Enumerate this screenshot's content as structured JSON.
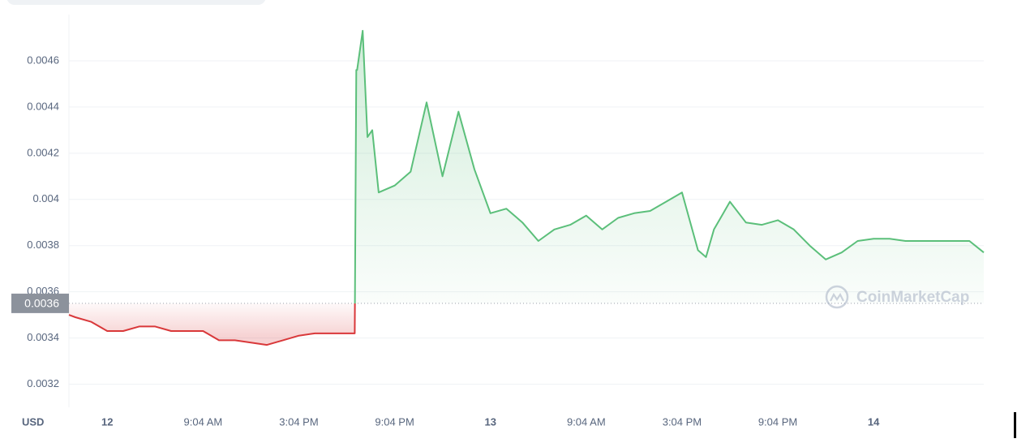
{
  "chart_data": {
    "type": "line",
    "x_axis_label": "USD",
    "watermark": "CoinMarketCap",
    "x": [
      -2.4,
      -2,
      -1,
      0,
      1,
      2,
      3,
      4,
      5,
      6,
      7,
      8,
      9,
      10,
      11,
      12,
      13,
      14,
      15,
      15.5,
      15.6,
      15.65,
      16,
      16.3,
      16.6,
      17,
      18,
      19,
      20,
      21,
      22,
      23,
      24,
      25,
      26,
      27,
      28,
      29,
      30,
      31,
      32,
      33,
      34,
      35,
      36,
      37,
      37.5,
      38,
      39,
      40,
      41,
      42,
      43,
      44,
      45,
      46,
      47,
      48,
      49,
      50,
      51,
      52,
      53,
      54,
      54.9
    ],
    "values": [
      0.0035,
      0.00349,
      0.00347,
      0.00343,
      0.00343,
      0.00345,
      0.00345,
      0.00343,
      0.00343,
      0.00343,
      0.00339,
      0.00339,
      0.00338,
      0.00337,
      0.00339,
      0.00341,
      0.00342,
      0.00342,
      0.00342,
      0.00342,
      0.00456,
      0.00456,
      0.00473,
      0.00427,
      0.0043,
      0.00403,
      0.00406,
      0.00412,
      0.00442,
      0.0041,
      0.00438,
      0.00413,
      0.00394,
      0.00396,
      0.0039,
      0.00382,
      0.00387,
      0.00389,
      0.00393,
      0.00387,
      0.00392,
      0.00394,
      0.00395,
      0.00399,
      0.00403,
      0.00378,
      0.00375,
      0.00387,
      0.00399,
      0.0039,
      0.00389,
      0.00391,
      0.00387,
      0.0038,
      0.00374,
      0.00377,
      0.00382,
      0.00383,
      0.00383,
      0.00382,
      0.00382,
      0.00382,
      0.00382,
      0.00382,
      0.00377
    ],
    "reference": {
      "value": 0.00355,
      "label": "0.0036"
    },
    "color_above": "#5bbf7a",
    "color_below": "#d9383a",
    "xlim": [
      -2.4,
      54.9
    ],
    "xticks": [
      {
        "value": 0,
        "label": "12"
      },
      {
        "value": 6,
        "label": "9:04 AM"
      },
      {
        "value": 12,
        "label": "3:04 PM"
      },
      {
        "value": 18,
        "label": "9:04 PM"
      },
      {
        "value": 24,
        "label": "13"
      },
      {
        "value": 30,
        "label": "9:04 AM"
      },
      {
        "value": 36,
        "label": "3:04 PM"
      },
      {
        "value": 42,
        "label": "9:04 PM"
      },
      {
        "value": 48,
        "label": "14"
      }
    ],
    "ylim": [
      0.0031,
      0.0048
    ],
    "yticks": [
      0.0032,
      0.0034,
      0.0036,
      0.0038,
      0.004,
      0.0042,
      0.0044,
      0.0046
    ],
    "grid": true
  }
}
